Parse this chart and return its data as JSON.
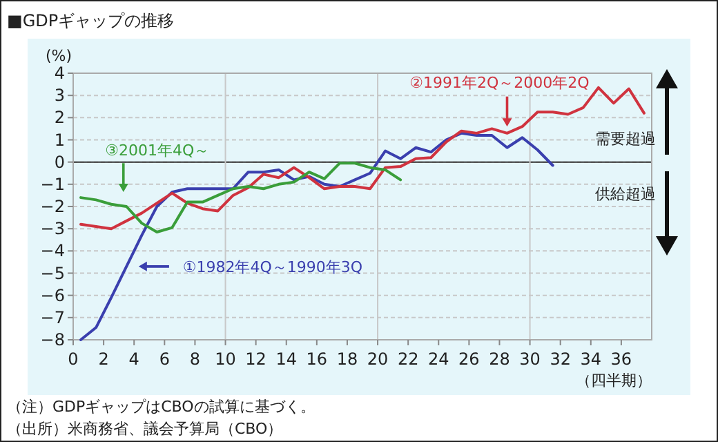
{
  "chart_data": {
    "type": "line",
    "title": "■GDPギャップの推移",
    "xlabel": "（四半期）",
    "ylabel": "(%)",
    "xlim": [
      0,
      38
    ],
    "xticks": [
      0,
      2,
      4,
      6,
      8,
      10,
      12,
      14,
      16,
      18,
      20,
      22,
      24,
      26,
      28,
      30,
      32,
      34,
      36
    ],
    "ylim": [
      -8,
      4
    ],
    "yticks": [
      -8,
      -7,
      -6,
      -5,
      -4,
      -3,
      -2,
      -1,
      0,
      1,
      2,
      3,
      4
    ],
    "grid": "y",
    "ref_lines": [
      {
        "axis": "y",
        "value": 0,
        "color": "#333333"
      },
      {
        "axis": "x",
        "value": 10,
        "color": "#c8c8c8"
      },
      {
        "axis": "x",
        "value": 20,
        "color": "#c8c8c8"
      },
      {
        "axis": "x",
        "value": 30,
        "color": "#c8c8c8"
      }
    ],
    "series": [
      {
        "name": "①1982年4Q～1990年3Q",
        "color": "#3a3fae",
        "x": [
          0.5,
          1.5,
          2.5,
          3.5,
          4.5,
          5.5,
          6.5,
          7.5,
          8.5,
          9.5,
          10.5,
          11.5,
          12.5,
          13.5,
          14.5,
          15.5,
          16.5,
          17.5,
          18.5,
          19.5,
          20.5,
          21.5,
          22.5,
          23.5,
          24.5,
          25.5,
          26.5,
          27.5,
          28.5,
          29.5,
          30.5,
          31.5
        ],
        "values": [
          -8.0,
          -7.45,
          -6.1,
          -4.7,
          -3.3,
          -2.0,
          -1.35,
          -1.2,
          -1.2,
          -1.2,
          -1.2,
          -0.45,
          -0.45,
          -0.35,
          -0.8,
          -0.65,
          -1.0,
          -1.1,
          -0.8,
          -0.5,
          0.5,
          0.15,
          0.65,
          0.45,
          1.0,
          1.3,
          1.2,
          1.2,
          0.65,
          1.1,
          0.55,
          -0.15
        ]
      },
      {
        "name": "②1991年2Q～2000年2Q",
        "color": "#d0333f",
        "x": [
          0.5,
          1.5,
          2.5,
          3.5,
          4.5,
          5.5,
          6.5,
          7.5,
          8.5,
          9.5,
          10.5,
          11.5,
          12.5,
          13.5,
          14.5,
          15.5,
          16.5,
          17.5,
          18.5,
          19.5,
          20.5,
          21.5,
          22.5,
          23.5,
          24.5,
          25.5,
          26.5,
          27.5,
          28.5,
          29.5,
          30.5,
          31.5,
          32.5,
          33.5,
          34.5,
          35.5,
          36.5,
          37.5
        ],
        "values": [
          -2.8,
          -2.9,
          -3.0,
          -2.65,
          -2.3,
          -1.85,
          -1.4,
          -1.85,
          -2.1,
          -2.2,
          -1.5,
          -1.15,
          -0.55,
          -0.7,
          -0.25,
          -0.7,
          -1.2,
          -1.1,
          -1.1,
          -1.2,
          -0.25,
          -0.2,
          0.15,
          0.2,
          0.9,
          1.4,
          1.3,
          1.5,
          1.3,
          1.6,
          2.25,
          2.25,
          2.15,
          2.45,
          3.35,
          2.65,
          3.3,
          2.2
        ]
      },
      {
        "name": "③2001年4Q～",
        "color": "#3a9e3a",
        "x": [
          0.5,
          1.5,
          2.5,
          3.5,
          4.5,
          5.5,
          6.5,
          7.5,
          8.5,
          9.5,
          10.5,
          11.5,
          12.5,
          13.5,
          14.5,
          15.5,
          16.5,
          17.5,
          18.5,
          19.5,
          20.5,
          21.5
        ],
        "values": [
          -1.6,
          -1.7,
          -1.9,
          -2.0,
          -2.75,
          -3.15,
          -2.95,
          -1.8,
          -1.8,
          -1.5,
          -1.2,
          -1.1,
          -1.2,
          -1.0,
          -0.9,
          -0.45,
          -0.75,
          -0.05,
          -0.05,
          -0.25,
          -0.35,
          -0.8
        ]
      }
    ],
    "annotations": [
      "需要超過",
      "供給超過",
      "（注）GDPギャップはCBOの試算に基づく。",
      "（出所）米商務省、議会予算局（CBO）"
    ]
  }
}
